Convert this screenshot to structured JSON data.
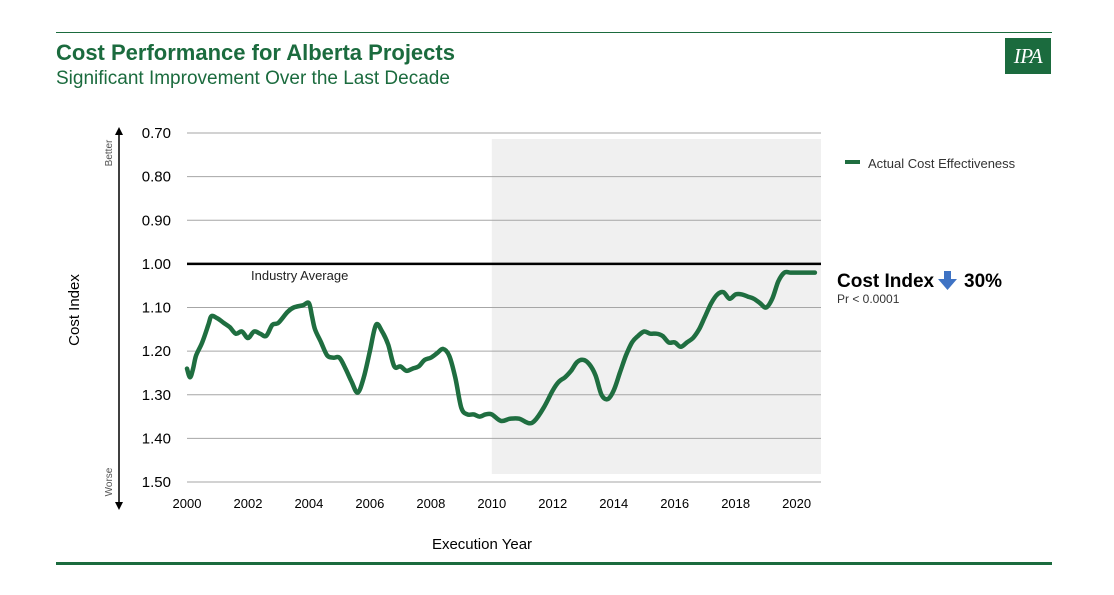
{
  "header": {
    "title": "Cost Performance for Alberta Projects",
    "subtitle": "Significant Improvement Over the Last Decade",
    "logo_text": "IPA"
  },
  "colors": {
    "brand_green": "#1b6b3e",
    "series_green": "#1f6e40",
    "shade": "#f0f0f0",
    "arrow_blue": "#3f73c4"
  },
  "chart_data": {
    "type": "line",
    "xlabel": "Execution Year",
    "ylabel": "Cost Index",
    "xlim": [
      2000,
      2020.8
    ],
    "ylim": [
      0.7,
      1.5
    ],
    "y_inverted": true,
    "y_ticks": [
      "0.70",
      "0.80",
      "0.90",
      "1.00",
      "1.10",
      "1.20",
      "1.30",
      "1.40",
      "1.50"
    ],
    "x_ticks": [
      "2000",
      "2002",
      "2004",
      "2006",
      "2008",
      "2010",
      "2012",
      "2014",
      "2016",
      "2018",
      "2020"
    ],
    "y_direction_labels": {
      "top": "Better",
      "bottom": "Worse"
    },
    "grid": true,
    "legend_position": "right",
    "shaded_region": {
      "x_start": 2010,
      "x_end": 2020.8
    },
    "reference_line": {
      "y": 1.0,
      "label": "Industry Average"
    },
    "annotation": {
      "label": "Cost Index",
      "value": "30%",
      "arrow": "down-arrow",
      "p_value": "Pr < 0.0001"
    },
    "series": [
      {
        "name": "Actual Cost Effectiveness",
        "x": [
          2000.0,
          2000.1,
          2000.2,
          2000.3,
          2000.5,
          2000.7,
          2000.8,
          2001.0,
          2001.2,
          2001.4,
          2001.6,
          2001.8,
          2002.0,
          2002.2,
          2002.4,
          2002.6,
          2002.8,
          2003.0,
          2003.3,
          2003.5,
          2003.8,
          2004.0,
          2004.1,
          2004.2,
          2004.4,
          2004.6,
          2004.8,
          2005.0,
          2005.2,
          2005.4,
          2005.6,
          2005.8,
          2006.0,
          2006.2,
          2006.4,
          2006.6,
          2006.8,
          2007.0,
          2007.2,
          2007.4,
          2007.6,
          2007.8,
          2008.0,
          2008.2,
          2008.4,
          2008.6,
          2008.8,
          2009.0,
          2009.2,
          2009.4,
          2009.6,
          2009.8,
          2010.0,
          2010.3,
          2010.6,
          2010.9,
          2011.2,
          2011.4,
          2011.7,
          2012.0,
          2012.2,
          2012.4,
          2012.6,
          2012.8,
          2013.0,
          2013.2,
          2013.4,
          2013.6,
          2013.8,
          2014.0,
          2014.2,
          2014.4,
          2014.6,
          2014.8,
          2015.0,
          2015.2,
          2015.4,
          2015.6,
          2015.8,
          2016.0,
          2016.2,
          2016.4,
          2016.6,
          2016.8,
          2017.0,
          2017.2,
          2017.4,
          2017.6,
          2017.8,
          2018.0,
          2018.2,
          2018.4,
          2018.6,
          2018.8,
          2019.0,
          2019.2,
          2019.4,
          2019.6,
          2019.8,
          2020.0,
          2020.2,
          2020.4,
          2020.6
        ],
        "y": [
          1.24,
          1.26,
          1.24,
          1.21,
          1.18,
          1.14,
          1.12,
          1.125,
          1.135,
          1.145,
          1.16,
          1.155,
          1.17,
          1.155,
          1.16,
          1.165,
          1.14,
          1.135,
          1.11,
          1.1,
          1.095,
          1.09,
          1.12,
          1.15,
          1.18,
          1.21,
          1.215,
          1.215,
          1.24,
          1.27,
          1.295,
          1.26,
          1.2,
          1.14,
          1.155,
          1.185,
          1.235,
          1.235,
          1.245,
          1.24,
          1.235,
          1.22,
          1.215,
          1.205,
          1.195,
          1.21,
          1.26,
          1.33,
          1.345,
          1.345,
          1.35,
          1.345,
          1.345,
          1.36,
          1.355,
          1.355,
          1.365,
          1.36,
          1.33,
          1.29,
          1.27,
          1.26,
          1.245,
          1.225,
          1.22,
          1.23,
          1.255,
          1.3,
          1.31,
          1.29,
          1.25,
          1.21,
          1.18,
          1.165,
          1.155,
          1.16,
          1.16,
          1.165,
          1.18,
          1.18,
          1.19,
          1.18,
          1.17,
          1.15,
          1.12,
          1.09,
          1.07,
          1.065,
          1.08,
          1.07,
          1.07,
          1.075,
          1.08,
          1.09,
          1.1,
          1.08,
          1.04,
          1.02,
          1.02,
          1.02,
          1.02,
          1.02,
          1.02
        ]
      }
    ]
  }
}
